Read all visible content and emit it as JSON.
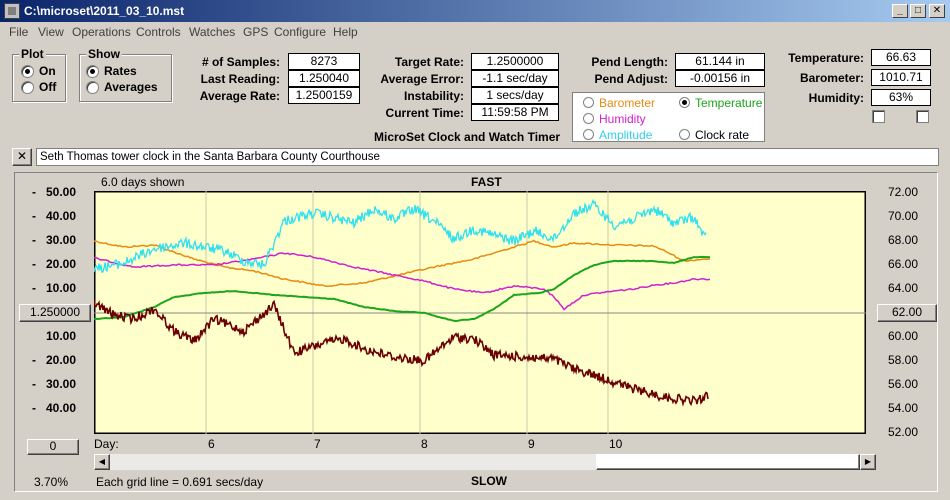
{
  "window": {
    "title": "C:\\microset\\2011_03_10.mst"
  },
  "menu": [
    "File",
    "View",
    "Operations",
    "Controls",
    "Watches",
    "GPS",
    "Configure",
    "Help"
  ],
  "plot_group": {
    "title": "Plot",
    "on": "On",
    "off": "Off",
    "selected": "On"
  },
  "show_group": {
    "title": "Show",
    "rates": "Rates",
    "averages": "Averages",
    "selected": "Rates"
  },
  "stats": {
    "samples_label": "# of Samples:",
    "samples": "8273",
    "last_label": "Last Reading:",
    "last": "1.250040",
    "avg_rate_label": "Average Rate:",
    "avg_rate": "1.2500159",
    "target_label": "Target Rate:",
    "target": "1.2500000",
    "avg_err_label": "Average Error:",
    "avg_err": "-1.1 sec/day",
    "instab_label": "Instability:",
    "instab": "1 secs/day",
    "time_label": "Current Time:",
    "time": "11:59:58 PM",
    "pend_len_label": "Pend Length:",
    "pend_len": "61.144 in",
    "pend_adj_label": "Pend Adjust:",
    "pend_adj": "-0.00156 in",
    "temp_label": "Temperature:",
    "temp": "66.63",
    "baro_label": "Barometer:",
    "baro": "1010.71",
    "hum_label": "Humidity:",
    "hum": "63%"
  },
  "app_caption": "MicroSet Clock and Watch Timer",
  "legend": {
    "barometer": "Barometer",
    "temperature": "Temperature",
    "humidity": "Humidity",
    "amplitude": "Amplitude",
    "clock_rate": "Clock rate",
    "selected": "Temperature"
  },
  "colors": {
    "barometer": "#e88a10",
    "temperature": "#1aa51a",
    "humidity": "#d020d0",
    "amplitude": "#30e0f0",
    "clock_rate": "#6a0000",
    "plot_bg": "#ffffcc"
  },
  "description": "Seth Thomas tower clock in the Santa Barbara County Courthouse",
  "plot": {
    "days_shown": "6.0 days shown",
    "top_label": "FAST",
    "bottom_label": "SLOW",
    "day_label": "Day:",
    "center_button": "1.250000",
    "right_button": "62.00",
    "zero_button": "0",
    "zoom": "3.70%",
    "grid_note": "Each grid line = 0.691 secs/day"
  },
  "chart_data": {
    "type": "line",
    "left_axis": [
      "50.00",
      "40.00",
      "30.00",
      "20.00",
      "10.00",
      "10.00",
      "20.00",
      "30.00",
      "40.00"
    ],
    "right_axis": [
      "72.00",
      "70.00",
      "68.00",
      "66.00",
      "64.00",
      "60.00",
      "58.00",
      "56.00",
      "54.00",
      "52.00"
    ],
    "x_ticks": [
      "6",
      "7",
      "8",
      "9",
      "10"
    ],
    "series_colors": [
      "amplitude",
      "barometer",
      "humidity",
      "temperature",
      "clock_rate"
    ]
  }
}
